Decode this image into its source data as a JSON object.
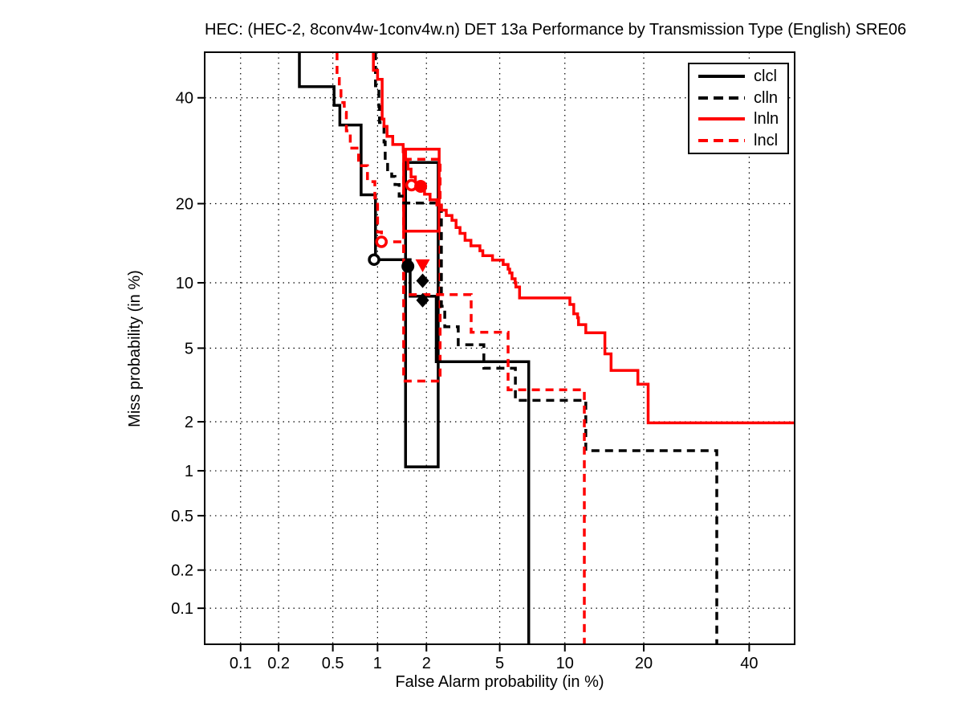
{
  "chart_data": {
    "type": "line",
    "variant": "DET curve (step plot, probit scale on both axes)",
    "title": "HEC: (HEC-2, 8conv4w-1conv4w.n) DET 13a Performance by Transmission Type (English) SRE06",
    "xlabel": "False Alarm probability (in %)",
    "ylabel": "Miss probability (in %)",
    "axis_scale": "normal-deviate (probit)",
    "xlim": [
      0.05,
      50
    ],
    "ylim": [
      0.05,
      50
    ],
    "grid": "dotted",
    "x_ticks": [
      0.1,
      0.2,
      0.5,
      1,
      2,
      5,
      10,
      20,
      40
    ],
    "x_tick_labels": [
      "0.1",
      "0.2",
      "0.5",
      "1",
      "2",
      "5",
      "10",
      "20",
      "40"
    ],
    "y_ticks": [
      40,
      20,
      10,
      5,
      2,
      1,
      0.5,
      0.2,
      0.1
    ],
    "y_tick_labels": [
      "40",
      "20",
      "10",
      "5",
      "2",
      "1",
      "0.5",
      "0.2",
      "0.1"
    ],
    "legend": {
      "position": "top-right",
      "entries": [
        {
          "label": "clcl",
          "color": "#000000",
          "style": "solid"
        },
        {
          "label": "clln",
          "color": "#000000",
          "style": "dashed"
        },
        {
          "label": "lnln",
          "color": "#ff0000",
          "style": "solid"
        },
        {
          "label": "lncl",
          "color": "#ff0000",
          "style": "dashed"
        }
      ]
    },
    "series": [
      {
        "name": "clcl",
        "color": "#000000",
        "style": "solid",
        "points": [
          [
            0.287,
            50
          ],
          [
            0.287,
            42.4
          ],
          [
            0.51,
            42.4
          ],
          [
            0.51,
            38.4
          ],
          [
            0.56,
            38.4
          ],
          [
            0.56,
            34.3
          ],
          [
            0.78,
            34.3
          ],
          [
            0.78,
            21.4
          ],
          [
            0.97,
            21.4
          ],
          [
            0.97,
            12.45
          ],
          [
            1.6,
            12.45
          ],
          [
            1.6,
            8.75
          ],
          [
            2.28,
            8.75
          ],
          [
            2.28,
            4.27
          ],
          [
            6.9,
            4.27
          ],
          [
            6.9,
            0.05
          ]
        ]
      },
      {
        "name": "clln",
        "color": "#000000",
        "style": "dashed",
        "points": [
          [
            0.97,
            50
          ],
          [
            0.97,
            42.6
          ],
          [
            1.02,
            42.6
          ],
          [
            1.02,
            38.1
          ],
          [
            1.03,
            38.1
          ],
          [
            1.03,
            34.8
          ],
          [
            1.1,
            34.8
          ],
          [
            1.1,
            30.9
          ],
          [
            1.12,
            30.9
          ],
          [
            1.12,
            27.4
          ],
          [
            1.16,
            27.4
          ],
          [
            1.16,
            25.7
          ],
          [
            1.23,
            25.7
          ],
          [
            1.23,
            24.5
          ],
          [
            1.29,
            24.5
          ],
          [
            1.29,
            23.1
          ],
          [
            1.37,
            23.1
          ],
          [
            1.37,
            21.2
          ],
          [
            1.46,
            21.2
          ],
          [
            1.46,
            20.1
          ],
          [
            2.44,
            20.1
          ],
          [
            2.44,
            7.9
          ],
          [
            2.55,
            7.9
          ],
          [
            2.55,
            6.35
          ],
          [
            3.03,
            6.35
          ],
          [
            3.03,
            5.2
          ],
          [
            4.15,
            5.2
          ],
          [
            4.15,
            3.95
          ],
          [
            5.97,
            3.95
          ],
          [
            5.97,
            2.65
          ],
          [
            12.2,
            2.65
          ],
          [
            12.2,
            1.34
          ],
          [
            33.2,
            1.34
          ],
          [
            33.2,
            0.05
          ]
        ]
      },
      {
        "name": "lnln",
        "color": "#ff0000",
        "style": "solid",
        "points": [
          [
            0.94,
            50
          ],
          [
            0.94,
            46
          ],
          [
            1.0,
            46
          ],
          [
            1.0,
            44
          ],
          [
            1.07,
            44
          ],
          [
            1.07,
            35.5
          ],
          [
            1.1,
            35.5
          ],
          [
            1.1,
            34
          ],
          [
            1.15,
            34
          ],
          [
            1.15,
            32
          ],
          [
            1.25,
            32
          ],
          [
            1.25,
            30.4
          ],
          [
            1.45,
            30.4
          ],
          [
            1.45,
            29
          ],
          [
            1.5,
            29
          ],
          [
            1.5,
            27.5
          ],
          [
            1.55,
            27.5
          ],
          [
            1.55,
            25.8
          ],
          [
            1.62,
            25.8
          ],
          [
            1.62,
            24.4
          ],
          [
            1.72,
            24.4
          ],
          [
            1.72,
            23.4
          ],
          [
            1.82,
            23.4
          ],
          [
            1.82,
            22.5
          ],
          [
            1.95,
            22.5
          ],
          [
            1.95,
            21.5
          ],
          [
            2.1,
            21.5
          ],
          [
            2.1,
            20.6
          ],
          [
            2.3,
            20.6
          ],
          [
            2.3,
            19.8
          ],
          [
            2.44,
            19.8
          ],
          [
            2.44,
            19.0
          ],
          [
            2.6,
            19.0
          ],
          [
            2.6,
            18.2
          ],
          [
            2.8,
            18.2
          ],
          [
            2.8,
            17.5
          ],
          [
            2.95,
            17.5
          ],
          [
            2.95,
            16.5
          ],
          [
            3.1,
            16.5
          ],
          [
            3.1,
            15.7
          ],
          [
            3.3,
            15.7
          ],
          [
            3.3,
            14.8
          ],
          [
            3.55,
            14.8
          ],
          [
            3.55,
            14.1
          ],
          [
            3.96,
            14.1
          ],
          [
            3.96,
            13.5
          ],
          [
            4.1,
            13.5
          ],
          [
            4.1,
            12.9
          ],
          [
            4.6,
            12.9
          ],
          [
            4.6,
            12.4
          ],
          [
            5.2,
            12.4
          ],
          [
            5.2,
            11.9
          ],
          [
            5.5,
            11.9
          ],
          [
            5.5,
            11.4
          ],
          [
            5.6,
            11.4
          ],
          [
            5.6,
            11.0
          ],
          [
            5.75,
            11.0
          ],
          [
            5.75,
            10.4
          ],
          [
            5.95,
            10.4
          ],
          [
            5.95,
            10.0
          ],
          [
            6.0,
            10.0
          ],
          [
            6.0,
            9.6
          ],
          [
            6.25,
            9.6
          ],
          [
            6.25,
            8.6
          ],
          [
            10.5,
            8.6
          ],
          [
            10.5,
            8.05
          ],
          [
            10.9,
            8.05
          ],
          [
            10.9,
            7.3
          ],
          [
            11.3,
            7.3
          ],
          [
            11.3,
            7.0
          ],
          [
            11.4,
            7.0
          ],
          [
            11.4,
            6.5
          ],
          [
            12.2,
            6.5
          ],
          [
            12.2,
            5.95
          ],
          [
            14.5,
            5.95
          ],
          [
            14.5,
            4.68
          ],
          [
            15.3,
            4.68
          ],
          [
            15.3,
            3.85
          ],
          [
            19.1,
            3.85
          ],
          [
            19.1,
            3.25
          ],
          [
            20.7,
            3.25
          ],
          [
            20.7,
            1.97
          ],
          [
            50,
            1.97
          ]
        ]
      },
      {
        "name": "lncl",
        "color": "#ff0000",
        "style": "dashed",
        "points": [
          [
            0.535,
            50
          ],
          [
            0.535,
            44.2
          ],
          [
            0.555,
            44.2
          ],
          [
            0.555,
            41.9
          ],
          [
            0.57,
            41.9
          ],
          [
            0.57,
            39
          ],
          [
            0.6,
            39
          ],
          [
            0.6,
            36.9
          ],
          [
            0.62,
            36.9
          ],
          [
            0.62,
            33.1
          ],
          [
            0.66,
            33.1
          ],
          [
            0.66,
            29.7
          ],
          [
            0.75,
            29.7
          ],
          [
            0.75,
            26.4
          ],
          [
            0.86,
            26.4
          ],
          [
            0.86,
            23.6
          ],
          [
            0.96,
            23.6
          ],
          [
            0.96,
            20.9
          ],
          [
            1.0,
            20.9
          ],
          [
            1.0,
            15.9
          ],
          [
            1.06,
            15.9
          ],
          [
            1.06,
            14.6
          ],
          [
            1.46,
            14.6
          ],
          [
            1.46,
            8.9
          ],
          [
            3.56,
            8.9
          ],
          [
            3.56,
            5.98
          ],
          [
            5.5,
            5.98
          ],
          [
            5.5,
            3.03
          ],
          [
            12.04,
            3.03
          ],
          [
            12.04,
            0.05
          ]
        ]
      }
    ],
    "dcf_boxes": [
      {
        "name": "black-solid-box",
        "color": "#000000",
        "style": "solid",
        "x": [
          1.5,
          2.34
        ],
        "y": [
          1.06,
          27.0
        ]
      },
      {
        "name": "red-solid-box",
        "color": "#ff0000",
        "style": "solid",
        "x": [
          1.46,
          2.37
        ],
        "y": [
          16.0,
          29.5
        ]
      },
      {
        "name": "red-dashed-box",
        "color": "#ff0000",
        "style": "dashed",
        "x": [
          1.46,
          2.4
        ],
        "y": [
          3.38,
          27.6
        ]
      }
    ],
    "markers": [
      {
        "shape": "circle-open",
        "color": "#000000",
        "x": 0.95,
        "y": 12.45
      },
      {
        "shape": "circle-filled",
        "color": "#000000",
        "x": 1.55,
        "y": 11.7
      },
      {
        "shape": "diamond-filled",
        "color": "#000000",
        "x": 1.9,
        "y": 10.2
      },
      {
        "shape": "diamond-filled",
        "color": "#000000",
        "x": 1.9,
        "y": 8.4
      },
      {
        "shape": "circle-open",
        "color": "#ff0000",
        "x": 1.06,
        "y": 14.6
      },
      {
        "shape": "circle-open",
        "color": "#ff0000",
        "x": 1.63,
        "y": 23.0
      },
      {
        "shape": "circle-filled",
        "color": "#ff0000",
        "x": 1.85,
        "y": 22.8
      },
      {
        "shape": "triangle-down-filled",
        "color": "#ff0000",
        "x": 1.9,
        "y": 11.85
      }
    ]
  },
  "colors": {
    "background": "#ffffff",
    "axis": "#000000",
    "grid": "#000000",
    "black_series": "#000000",
    "red_series": "#ff0000"
  }
}
